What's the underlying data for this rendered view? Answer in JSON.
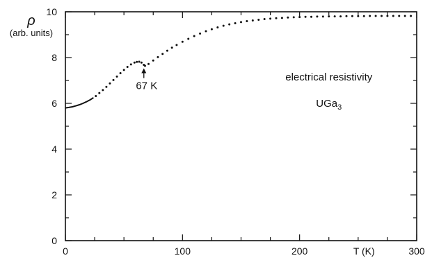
{
  "chart_data": {
    "type": "line",
    "ylabel_symbol": "ρ",
    "ylabel_units": "(arb. units)",
    "xlabel": "T (K)",
    "xlim": [
      0,
      300
    ],
    "ylim": [
      0,
      10
    ],
    "x_ticks": [
      0,
      100,
      200,
      300
    ],
    "x_tick_labels": [
      "0",
      "100",
      "200",
      "300"
    ],
    "y_ticks": [
      0,
      2,
      4,
      6,
      8,
      10
    ],
    "y_tick_labels": [
      "0",
      "2",
      "4",
      "6",
      "8",
      "10"
    ],
    "grid": false,
    "annotations": {
      "transition_label": "67 K",
      "transition_x": 67,
      "transition_y": 7.65,
      "property": "electrical resistivity",
      "compound": "UGa",
      "compound_subscript": "3"
    },
    "series": [
      {
        "solid_points": [
          [
            0,
            5.8
          ],
          [
            3,
            5.82
          ],
          [
            6,
            5.85
          ],
          [
            9,
            5.89
          ],
          [
            12,
            5.94
          ],
          [
            15,
            6.0
          ],
          [
            18,
            6.07
          ],
          [
            21,
            6.15
          ],
          [
            24,
            6.25
          ]
        ],
        "dotted_points": [
          [
            26,
            6.32
          ],
          [
            29,
            6.45
          ],
          [
            32,
            6.58
          ],
          [
            35,
            6.72
          ],
          [
            38,
            6.87
          ],
          [
            41,
            7.02
          ],
          [
            44,
            7.17
          ],
          [
            47,
            7.32
          ],
          [
            50,
            7.46
          ],
          [
            53,
            7.59
          ],
          [
            56,
            7.7
          ],
          [
            59,
            7.78
          ],
          [
            61,
            7.81
          ],
          [
            63,
            7.82
          ],
          [
            65,
            7.78
          ],
          [
            67,
            7.68
          ],
          [
            68,
            7.64
          ],
          [
            71,
            7.72
          ],
          [
            75,
            7.87
          ],
          [
            79,
            8.02
          ],
          [
            83,
            8.16
          ],
          [
            87,
            8.3
          ],
          [
            91,
            8.43
          ],
          [
            95,
            8.55
          ],
          [
            100,
            8.69
          ],
          [
            105,
            8.82
          ],
          [
            110,
            8.94
          ],
          [
            115,
            9.05
          ],
          [
            120,
            9.15
          ],
          [
            125,
            9.24
          ],
          [
            130,
            9.32
          ],
          [
            135,
            9.39
          ],
          [
            140,
            9.45
          ],
          [
            145,
            9.5
          ],
          [
            150,
            9.55
          ],
          [
            155,
            9.59
          ],
          [
            160,
            9.62
          ],
          [
            165,
            9.65
          ],
          [
            170,
            9.68
          ],
          [
            175,
            9.7
          ],
          [
            180,
            9.72
          ],
          [
            185,
            9.73
          ],
          [
            190,
            9.75
          ],
          [
            195,
            9.76
          ],
          [
            200,
            9.77
          ],
          [
            205,
            9.78
          ],
          [
            210,
            9.78
          ],
          [
            215,
            9.79
          ],
          [
            220,
            9.79
          ],
          [
            225,
            9.8
          ],
          [
            230,
            9.8
          ],
          [
            235,
            9.8
          ],
          [
            240,
            9.81
          ],
          [
            245,
            9.81
          ],
          [
            250,
            9.81
          ],
          [
            255,
            9.81
          ],
          [
            260,
            9.82
          ],
          [
            265,
            9.82
          ],
          [
            270,
            9.82
          ],
          [
            275,
            9.82
          ],
          [
            280,
            9.82
          ],
          [
            285,
            9.82
          ],
          [
            290,
            9.82
          ],
          [
            295,
            9.82
          ]
        ]
      }
    ]
  }
}
